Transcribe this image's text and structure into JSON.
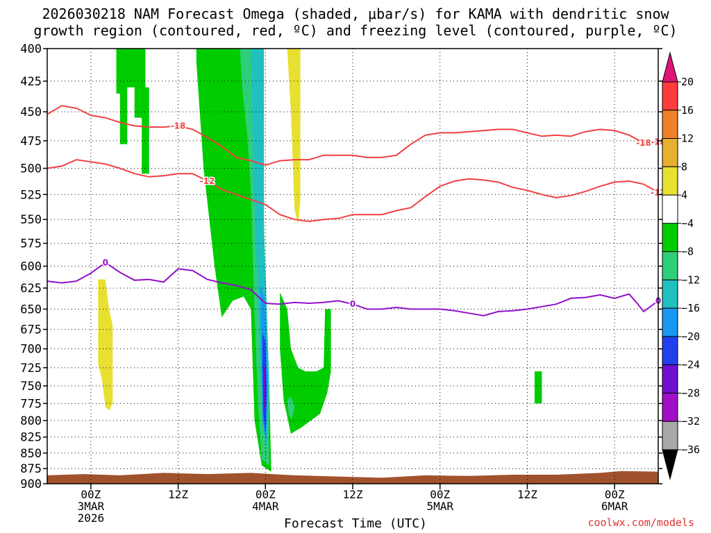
{
  "page": {
    "title": "2026030218 NAM Forecast Omega (shaded, μbar/s) for KAMA with dendritic snow\ngrowth region (contoured, red, ºC) and freezing level (contoured, purple, ºC)",
    "credit": "coolwx.com/models"
  },
  "chart_data": {
    "type": "contour",
    "title": "2026030218 NAM Forecast Omega (shaded, μbar/s) for KAMA with dendritic snow growth region (contoured, red, ºC) and freezing level (contoured, purple, ºC)",
    "xlabel": "Forecast Time (UTC)",
    "ylabel": "",
    "x_unit": "hours from 2026-03-02 18Z",
    "xlim": [
      0,
      84
    ],
    "x_ticks": [
      {
        "hour": 6,
        "lines": [
          "00Z",
          "3MAR",
          "2026"
        ]
      },
      {
        "hour": 18,
        "lines": [
          "12Z"
        ]
      },
      {
        "hour": 30,
        "lines": [
          "00Z",
          "4MAR"
        ]
      },
      {
        "hour": 42,
        "lines": [
          "12Z"
        ]
      },
      {
        "hour": 54,
        "lines": [
          "00Z",
          "5MAR"
        ]
      },
      {
        "hour": 66,
        "lines": [
          "12Z"
        ]
      },
      {
        "hour": 78,
        "lines": [
          "00Z",
          "6MAR"
        ]
      }
    ],
    "y_ticks": [
      400,
      425,
      450,
      475,
      500,
      525,
      550,
      575,
      600,
      625,
      650,
      675,
      700,
      725,
      750,
      775,
      800,
      825,
      850,
      875,
      900
    ],
    "ylim": [
      400,
      900
    ],
    "y_axis_type": "pressure (hPa), log scale",
    "grid": "dotted",
    "colorbar": {
      "unit": "μbar/s",
      "labels": [
        "20",
        "16",
        "12",
        "8",
        "4",
        "−4",
        "−8",
        "−12",
        "−16",
        "−20",
        "−24",
        "−28",
        "−32",
        "−36"
      ],
      "bins": [
        {
          "lo": 16,
          "hi": 20,
          "color": "#ff3b3b"
        },
        {
          "lo": 12,
          "hi": 16,
          "color": "#f0802a"
        },
        {
          "lo": 8,
          "hi": 12,
          "color": "#e6b030"
        },
        {
          "lo": 4,
          "hi": 8,
          "color": "#e8e030"
        },
        {
          "lo": -4,
          "hi": 4,
          "color": "#ffffff"
        },
        {
          "lo": -8,
          "hi": -4,
          "color": "#00cc00"
        },
        {
          "lo": -12,
          "hi": -8,
          "color": "#2fce7a"
        },
        {
          "lo": -16,
          "hi": -12,
          "color": "#20c0c0"
        },
        {
          "lo": -20,
          "hi": -16,
          "color": "#1898f0"
        },
        {
          "lo": -24,
          "hi": -20,
          "color": "#2040f0"
        },
        {
          "lo": -28,
          "hi": -24,
          "color": "#7010d0"
        },
        {
          "lo": -32,
          "hi": -28,
          "color": "#a010c8"
        },
        {
          "lo": -36,
          "hi": -32,
          "color": "#a8a8a8"
        }
      ],
      "top_arrow_color": "#e0147a",
      "bottom_arrow_color": "#000000"
    },
    "contours": [
      {
        "label": "-18",
        "color": "#f04040",
        "points": [
          [
            0,
            452
          ],
          [
            2,
            445
          ],
          [
            4,
            447
          ],
          [
            6,
            453
          ],
          [
            8,
            455
          ],
          [
            10,
            459
          ],
          [
            12,
            462
          ],
          [
            14,
            463
          ],
          [
            16,
            463
          ],
          [
            18,
            462
          ],
          [
            20,
            465
          ],
          [
            22,
            472
          ],
          [
            24,
            480
          ],
          [
            26,
            490
          ],
          [
            28,
            493
          ],
          [
            30,
            497
          ],
          [
            32,
            493
          ],
          [
            34,
            492
          ],
          [
            36,
            492
          ],
          [
            38,
            488
          ],
          [
            40,
            488
          ],
          [
            42,
            488
          ],
          [
            44,
            490
          ],
          [
            46,
            490
          ],
          [
            48,
            488
          ],
          [
            50,
            478
          ],
          [
            52,
            470
          ],
          [
            54,
            468
          ],
          [
            56,
            468
          ],
          [
            58,
            467
          ],
          [
            60,
            466
          ],
          [
            62,
            465
          ],
          [
            64,
            465
          ],
          [
            66,
            468
          ],
          [
            68,
            471
          ],
          [
            70,
            470
          ],
          [
            72,
            471
          ],
          [
            74,
            467
          ],
          [
            76,
            465
          ],
          [
            78,
            466
          ],
          [
            80,
            470
          ],
          [
            82,
            477
          ],
          [
            84,
            476
          ]
        ]
      },
      {
        "label": "-12",
        "color": "#f04040",
        "points": [
          [
            0,
            500
          ],
          [
            2,
            498
          ],
          [
            4,
            492
          ],
          [
            6,
            494
          ],
          [
            8,
            496
          ],
          [
            10,
            500
          ],
          [
            12,
            505
          ],
          [
            14,
            508
          ],
          [
            16,
            507
          ],
          [
            18,
            505
          ],
          [
            20,
            505
          ],
          [
            22,
            512
          ],
          [
            24,
            520
          ],
          [
            26,
            525
          ],
          [
            28,
            530
          ],
          [
            30,
            535
          ],
          [
            32,
            545
          ],
          [
            34,
            550
          ],
          [
            36,
            552
          ],
          [
            38,
            550
          ],
          [
            40,
            549
          ],
          [
            42,
            545
          ],
          [
            44,
            545
          ],
          [
            46,
            545
          ],
          [
            48,
            541
          ],
          [
            50,
            538
          ],
          [
            52,
            527
          ],
          [
            54,
            517
          ],
          [
            56,
            512
          ],
          [
            58,
            510
          ],
          [
            60,
            511
          ],
          [
            62,
            513
          ],
          [
            64,
            518
          ],
          [
            66,
            521
          ],
          [
            68,
            525
          ],
          [
            70,
            528
          ],
          [
            72,
            526
          ],
          [
            74,
            522
          ],
          [
            76,
            517
          ],
          [
            78,
            513
          ],
          [
            80,
            512
          ],
          [
            82,
            515
          ],
          [
            84,
            523
          ]
        ]
      },
      {
        "label": "0",
        "color": "#9010c8",
        "points": [
          [
            0,
            617
          ],
          [
            2,
            619
          ],
          [
            4,
            617
          ],
          [
            6,
            608
          ],
          [
            8,
            596
          ],
          [
            10,
            607
          ],
          [
            12,
            616
          ],
          [
            14,
            615
          ],
          [
            16,
            618
          ],
          [
            18,
            603
          ],
          [
            20,
            605
          ],
          [
            22,
            615
          ],
          [
            24,
            619
          ],
          [
            26,
            622
          ],
          [
            28,
            627
          ],
          [
            30,
            643
          ],
          [
            32,
            644
          ],
          [
            34,
            642
          ],
          [
            36,
            643
          ],
          [
            38,
            642
          ],
          [
            40,
            640
          ],
          [
            42,
            644
          ],
          [
            44,
            650
          ],
          [
            46,
            650
          ],
          [
            48,
            648
          ],
          [
            50,
            650
          ],
          [
            52,
            650
          ],
          [
            54,
            650
          ],
          [
            56,
            652
          ],
          [
            58,
            655
          ],
          [
            60,
            658
          ],
          [
            62,
            653
          ],
          [
            64,
            652
          ],
          [
            66,
            650
          ],
          [
            68,
            647
          ],
          [
            70,
            644
          ],
          [
            72,
            637
          ],
          [
            74,
            636
          ],
          [
            76,
            633
          ],
          [
            78,
            637
          ],
          [
            80,
            632
          ],
          [
            81,
            642
          ],
          [
            82,
            653
          ],
          [
            84,
            640
          ]
        ]
      }
    ],
    "shaded_regions": [
      {
        "omega_bin": "-8 to -4",
        "color": "#00cc00",
        "polygon": [
          [
            9.5,
            400
          ],
          [
            13.5,
            400
          ],
          [
            13.5,
            430
          ],
          [
            14,
            430
          ],
          [
            14,
            505
          ],
          [
            13,
            505
          ],
          [
            13,
            455
          ],
          [
            12,
            455
          ],
          [
            12,
            430
          ],
          [
            11,
            430
          ],
          [
            11,
            478
          ],
          [
            10,
            478
          ],
          [
            10,
            435
          ],
          [
            9.5,
            435
          ]
        ]
      },
      {
        "omega_bin": "-8 to -4",
        "color": "#00cc00",
        "polygon": [
          [
            20.5,
            400
          ],
          [
            28,
            400
          ],
          [
            29.5,
            460
          ],
          [
            29.8,
            560
          ],
          [
            30.5,
            740
          ],
          [
            30.8,
            880
          ],
          [
            29.5,
            870
          ],
          [
            28.5,
            800
          ],
          [
            28,
            650
          ],
          [
            27,
            635
          ],
          [
            25.5,
            640
          ],
          [
            24,
            660
          ],
          [
            23,
            600
          ],
          [
            21.5,
            500
          ],
          [
            20.5,
            410
          ]
        ]
      },
      {
        "omega_bin": "-8 to -4",
        "color": "#00cc00",
        "polygon": [
          [
            32,
            630
          ],
          [
            33,
            650
          ],
          [
            33.5,
            700
          ],
          [
            34.5,
            725
          ],
          [
            35.5,
            730
          ],
          [
            37,
            730
          ],
          [
            38,
            725
          ],
          [
            38.2,
            650
          ],
          [
            39,
            650
          ],
          [
            39,
            730
          ],
          [
            38.5,
            760
          ],
          [
            37.5,
            790
          ],
          [
            35,
            810
          ],
          [
            33.5,
            820
          ],
          [
            32.5,
            770
          ],
          [
            32,
            700
          ]
        ]
      },
      {
        "omega_bin": "-8 to -4",
        "color": "#00cc00",
        "polygon": [
          [
            67,
            730
          ],
          [
            68,
            730
          ],
          [
            68,
            775
          ],
          [
            67,
            775
          ]
        ]
      },
      {
        "omega_bin": "-12 to -8",
        "color": "#2fce7a",
        "polygon": [
          [
            26.5,
            400
          ],
          [
            29.5,
            400
          ],
          [
            29.8,
            560
          ],
          [
            30.5,
            740
          ],
          [
            30.5,
            870
          ],
          [
            29.5,
            860
          ],
          [
            29,
            780
          ],
          [
            28.5,
            660
          ],
          [
            28,
            520
          ],
          [
            27.5,
            470
          ],
          [
            26.8,
            430
          ]
        ]
      },
      {
        "omega_bin": "-12 to -8",
        "color": "#2fce7a",
        "polygon": [
          [
            33,
            770
          ],
          [
            33.5,
            765
          ],
          [
            34,
            780
          ],
          [
            33.6,
            800
          ],
          [
            33.2,
            790
          ]
        ]
      },
      {
        "omega_bin": "-16 to -12",
        "color": "#20c0c0",
        "polygon": [
          [
            28,
            400
          ],
          [
            29.8,
            400
          ],
          [
            29.8,
            560
          ],
          [
            30.5,
            740
          ],
          [
            30.3,
            840
          ],
          [
            29.6,
            810
          ],
          [
            29.2,
            700
          ],
          [
            28.8,
            600
          ],
          [
            28.3,
            500
          ]
        ]
      },
      {
        "omega_bin": "-20 to -16",
        "color": "#1898f0",
        "polygon": [
          [
            29.3,
            620
          ],
          [
            29.9,
            640
          ],
          [
            30.3,
            740
          ],
          [
            30.1,
            830
          ],
          [
            29.6,
            800
          ],
          [
            29.4,
            700
          ]
        ]
      },
      {
        "omega_bin": "-24 to -20",
        "color": "#2040f0",
        "polygon": [
          [
            29.6,
            680
          ],
          [
            30,
            690
          ],
          [
            30.2,
            760
          ],
          [
            30,
            820
          ],
          [
            29.7,
            790
          ],
          [
            29.6,
            720
          ]
        ]
      },
      {
        "omega_bin": "-28 to -24",
        "color": "#7010d0",
        "polygon": [
          [
            29.7,
            720
          ],
          [
            30,
            725
          ],
          [
            30.05,
            770
          ],
          [
            29.9,
            790
          ],
          [
            29.75,
            770
          ]
        ]
      },
      {
        "omega_bin": "4 to 8",
        "color": "#e8e030",
        "polygon": [
          [
            33,
            400
          ],
          [
            34.8,
            400
          ],
          [
            34.8,
            530
          ],
          [
            34.5,
            555
          ],
          [
            34,
            540
          ],
          [
            33.5,
            450
          ],
          [
            33.2,
            420
          ]
        ]
      },
      {
        "omega_bin": "4 to 8",
        "color": "#e8e030",
        "polygon": [
          [
            7,
            615
          ],
          [
            8,
            615
          ],
          [
            8.5,
            650
          ],
          [
            9,
            670
          ],
          [
            9,
            775
          ],
          [
            8.5,
            785
          ],
          [
            8,
            780
          ],
          [
            7.5,
            740
          ],
          [
            7,
            720
          ]
        ]
      }
    ],
    "terrain": {
      "color": "#a0522d",
      "base_pressure": 900
    }
  }
}
